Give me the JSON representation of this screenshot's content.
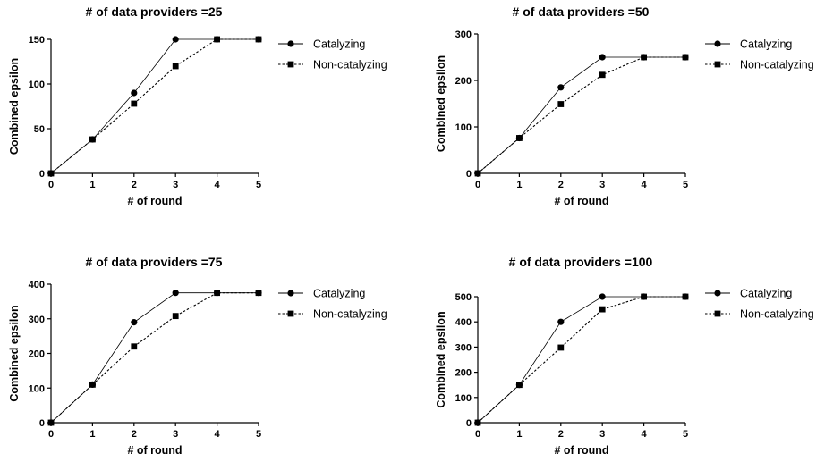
{
  "figure": {
    "title": "",
    "colors": {
      "ink": "#000000",
      "background": "#ffffff"
    }
  },
  "chart_data": [
    {
      "type": "line",
      "title": "# of data providers =25",
      "xlabel": "# of round",
      "ylabel": "Combined epsilon",
      "x": [
        0,
        1,
        2,
        3,
        4,
        5
      ],
      "xlim": [
        0,
        5
      ],
      "ylim": [
        0,
        150
      ],
      "yticks": [
        0,
        50,
        100,
        150
      ],
      "grid": false,
      "legend": "right",
      "series": [
        {
          "name": "Catalyzing",
          "marker": "circle",
          "line": "solid",
          "values": [
            0,
            38,
            90,
            150,
            150,
            150
          ]
        },
        {
          "name": "Non-catalyzing",
          "marker": "square",
          "line": "dotted",
          "values": [
            0,
            38,
            78,
            120,
            150,
            150
          ]
        }
      ]
    },
    {
      "type": "line",
      "title": "# of data providers =50",
      "xlabel": "# of round",
      "ylabel": "Combined epsilon",
      "x": [
        0,
        1,
        2,
        3,
        4,
        5
      ],
      "xlim": [
        0,
        5
      ],
      "ylim": [
        0,
        300
      ],
      "yticks": [
        0,
        100,
        200,
        300
      ],
      "grid": false,
      "legend": "right",
      "series": [
        {
          "name": "Catalyzing",
          "marker": "circle",
          "line": "solid",
          "values": [
            0,
            76,
            185,
            250,
            250,
            250
          ]
        },
        {
          "name": "Non-catalyzing",
          "marker": "square",
          "line": "dotted",
          "values": [
            0,
            76,
            149,
            212,
            250,
            250
          ]
        }
      ]
    },
    {
      "type": "line",
      "title": "# of data providers =75",
      "xlabel": "# of round",
      "ylabel": "Combined epsilon",
      "x": [
        0,
        1,
        2,
        3,
        4,
        5
      ],
      "xlim": [
        0,
        5
      ],
      "ylim": [
        0,
        400
      ],
      "yticks": [
        0,
        100,
        200,
        300,
        400
      ],
      "grid": false,
      "legend": "right",
      "series": [
        {
          "name": "Catalyzing",
          "marker": "circle",
          "line": "solid",
          "values": [
            0,
            110,
            290,
            375,
            375,
            375
          ]
        },
        {
          "name": "Non-catalyzing",
          "marker": "square",
          "line": "dotted",
          "values": [
            0,
            110,
            220,
            308,
            375,
            375
          ]
        }
      ]
    },
    {
      "type": "line",
      "title": "# of data providers =100",
      "xlabel": "# of round",
      "ylabel": "Combined epsilon",
      "x": [
        0,
        1,
        2,
        3,
        4,
        5
      ],
      "xlim": [
        0,
        5
      ],
      "ylim": [
        0,
        500
      ],
      "yticks": [
        0,
        100,
        200,
        300,
        400,
        500
      ],
      "grid": false,
      "legend": "right",
      "series": [
        {
          "name": "Catalyzing",
          "marker": "circle",
          "line": "solid",
          "values": [
            0,
            150,
            400,
            500,
            500,
            500
          ]
        },
        {
          "name": "Non-catalyzing",
          "marker": "square",
          "line": "dotted",
          "values": [
            0,
            150,
            298,
            450,
            500,
            500
          ]
        }
      ]
    }
  ]
}
